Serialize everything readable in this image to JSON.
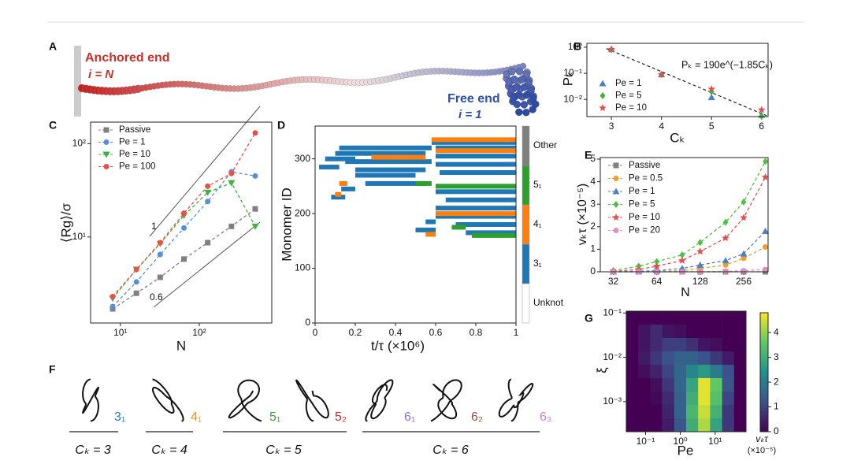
{
  "figure": {
    "panel_letters": [
      "A",
      "B",
      "C",
      "D",
      "E",
      "F",
      "G"
    ],
    "anchored_end": "Anchored end",
    "anchored_index": "i = N",
    "free_end": "Free end",
    "free_index": "i = 1",
    "knots": [
      {
        "label": "3₁",
        "color": "#2a7ab8"
      },
      {
        "label": "4₁",
        "color": "#e8962a"
      },
      {
        "label": "5₁",
        "color": "#3aa040"
      },
      {
        "label": "5₂",
        "color": "#c03030"
      },
      {
        "label": "6₁",
        "color": "#9070c0"
      },
      {
        "label": "6₂",
        "color": "#905040"
      },
      {
        "label": "6₃",
        "color": "#d080c0"
      }
    ],
    "groups": [
      "Cₖ = 3",
      "Cₖ = 4",
      "Cₖ = 5",
      "Cₖ = 6"
    ]
  },
  "chart_data": [
    {
      "type": "scatter",
      "xlabel": "Cₖ",
      "ylabel": "Pₖ",
      "annotation": "Pₖ = 190e^(−1.85Cₖ)",
      "fit": {
        "a": 190,
        "b": -1.85
      },
      "x": [
        3,
        4,
        5,
        6
      ],
      "xlim": [
        2.51,
        6.13
      ],
      "xticks": [
        3,
        4,
        5,
        6
      ],
      "yscale": "log",
      "ylim": [
        0.0022,
        1.41
      ],
      "yticks": [
        {
          "value": 0.01,
          "label": "10⁻²"
        },
        {
          "value": 0.1,
          "label": "10⁻¹"
        },
        {
          "value": 1,
          "label": "10⁰"
        }
      ],
      "legend": "lower left",
      "series": [
        {
          "name": "Pe = 1",
          "color": "#4a80c8",
          "marker": "triangle",
          "values": [
            0.85,
            0.09,
            0.012,
            0.0025
          ]
        },
        {
          "name": "Pe = 5",
          "color": "#40b040",
          "marker": "diamond",
          "values": [
            0.8,
            0.09,
            0.02,
            0.0023
          ]
        },
        {
          "name": "Pe = 10",
          "color": "#e05050",
          "marker": "star",
          "values": [
            0.82,
            0.09,
            0.025,
            0.004
          ]
        }
      ]
    },
    {
      "type": "line",
      "xlabel": "N",
      "ylabel": "⟨Rg⟩/σ",
      "annotations": [
        "1",
        "0.6"
      ],
      "x": [
        8,
        16,
        32,
        64,
        128,
        256,
        512
      ],
      "xscale": "log",
      "xlim": [
        4.2,
        830
      ],
      "xticks": [
        {
          "value": 10,
          "label": "10¹"
        },
        {
          "value": 100,
          "label": "10²"
        }
      ],
      "yscale": "log",
      "ylim": [
        1.2,
        170
      ],
      "yticks": [
        {
          "value": 10,
          "label": "10¹"
        },
        {
          "value": 100,
          "label": "10²"
        }
      ],
      "legend": "upper left",
      "series": [
        {
          "name": "Passive",
          "color": "#808080",
          "marker": "square",
          "values": [
            1.7,
            2.5,
            3.7,
            5.8,
            8.7,
            13,
            20
          ]
        },
        {
          "name": "Pe = 1",
          "color": "#5b8fd4",
          "marker": "circle",
          "values": [
            1.8,
            3.3,
            6.5,
            12.5,
            24,
            50,
            45
          ]
        },
        {
          "name": "Pe = 10",
          "color": "#3cb43c",
          "marker": "triangle-down",
          "values": [
            2.2,
            4.5,
            8.5,
            17,
            30,
            38,
            13
          ]
        },
        {
          "name": "Pe = 100",
          "color": "#e8504a",
          "marker": "circle",
          "values": [
            2.3,
            4.5,
            8.7,
            18,
            35,
            48,
            130
          ]
        }
      ]
    },
    {
      "type": "raster",
      "xlabel": "t/τ  (×10⁶)",
      "ylabel": "Monomer ID",
      "xlim": [
        0,
        1
      ],
      "xticks": [
        0,
        0.2,
        0.4,
        0.6,
        0.8,
        1
      ],
      "ylim": [
        0,
        360
      ],
      "yticks": [
        0,
        100,
        200,
        300
      ],
      "series": [
        {
          "name": "Unknot",
          "color": "#ffffff",
          "segments": []
        },
        {
          "name": "3₁",
          "color": "#1f77b4",
          "segments": [
            [
              0.02,
              0.12,
              285
            ],
            [
              0.05,
              0.2,
              300
            ],
            [
              0.1,
              0.55,
              310
            ],
            [
              0.12,
              0.58,
              320
            ],
            [
              0.15,
              0.58,
              295
            ],
            [
              0.2,
              0.55,
              280
            ],
            [
              0.2,
              0.5,
              270
            ],
            [
              0.25,
              0.55,
              255
            ],
            [
              0.58,
              1,
              330
            ],
            [
              0.6,
              1,
              320
            ],
            [
              0.6,
              1,
              305
            ],
            [
              0.6,
              1,
              290
            ],
            [
              0.62,
              1,
              275
            ],
            [
              0.6,
              1,
              240
            ],
            [
              0.65,
              1,
              225
            ],
            [
              0.6,
              1,
              210
            ],
            [
              0.6,
              1,
              195
            ],
            [
              0.08,
              0.15,
              230
            ],
            [
              0.13,
              0.2,
              245
            ],
            [
              0.55,
              0.6,
              185
            ],
            [
              0.5,
              0.6,
              170
            ],
            [
              0.7,
              1,
              180
            ],
            [
              0.75,
              1,
              165
            ]
          ]
        },
        {
          "name": "4₁",
          "color": "#ff7f0e",
          "segments": [
            [
              0.28,
              0.55,
              303
            ],
            [
              0.12,
              0.16,
              255
            ],
            [
              0.1,
              0.13,
              235
            ],
            [
              0.58,
              1,
              335
            ],
            [
              0.6,
              1,
              315
            ],
            [
              0.6,
              1,
              200
            ],
            [
              0.55,
              0.6,
              162
            ]
          ]
        },
        {
          "name": "5₁",
          "color": "#2ca02c",
          "segments": [
            [
              0.5,
              0.58,
              255
            ],
            [
              0.6,
              1,
              250
            ],
            [
              0.78,
              1,
              160
            ],
            [
              0.68,
              0.75,
              175
            ]
          ]
        },
        {
          "name": "Other",
          "color": "#7f7f7f",
          "segments": []
        }
      ]
    },
    {
      "type": "line",
      "xlabel": "N",
      "ylabel": "vₖτ (×10⁻⁵)",
      "x": [
        32,
        48,
        64,
        96,
        128,
        192,
        256,
        362
      ],
      "xscale": "log",
      "xlim": [
        26,
        378
      ],
      "xticks": [
        32,
        64,
        128,
        256
      ],
      "ylim": [
        0,
        5.07
      ],
      "yticks": [
        0,
        1,
        2,
        3,
        4,
        5
      ],
      "legend": "upper left",
      "series": [
        {
          "name": "Passive",
          "color": "#808080",
          "marker": "square",
          "values": [
            0,
            0,
            0,
            0,
            0,
            0,
            0,
            0
          ]
        },
        {
          "name": "Pe = 0.5",
          "color": "#f0a030",
          "marker": "circle",
          "values": [
            0,
            0,
            0.02,
            0.05,
            0.15,
            0.3,
            0.6,
            1.1
          ]
        },
        {
          "name": "Pe = 1",
          "color": "#5080c0",
          "marker": "triangle",
          "values": [
            0,
            0.02,
            0.05,
            0.15,
            0.3,
            0.5,
            0.8,
            1.8
          ]
        },
        {
          "name": "Pe = 5",
          "color": "#50c040",
          "marker": "diamond",
          "values": [
            0.05,
            0.25,
            0.45,
            0.75,
            1.3,
            2.2,
            3.1,
            4.9
          ]
        },
        {
          "name": "Pe = 10",
          "color": "#e05050",
          "marker": "star",
          "values": [
            0.02,
            0.1,
            0.25,
            0.5,
            0.9,
            1.5,
            2.4,
            4.2
          ]
        },
        {
          "name": "Pe = 20",
          "color": "#e090c0",
          "marker": "circle",
          "values": [
            0,
            0,
            0,
            0,
            0,
            0.02,
            0.05,
            0.1
          ]
        }
      ]
    },
    {
      "type": "heatmap",
      "xlabel": "Pe",
      "ylabel": "ξ",
      "colorbar_label": "vₖτ",
      "colorbar_unit": "(×10⁻⁵)",
      "xscale": "log",
      "xlim": [
        0.028,
        77
      ],
      "xticks": [
        {
          "value": 0.1,
          "label": "10⁻¹"
        },
        {
          "value": 1,
          "label": "10⁰"
        },
        {
          "value": 10,
          "label": "10¹"
        }
      ],
      "yscale": "log",
      "ylim": [
        0.00021,
        0.11
      ],
      "yticks": [
        {
          "value": 0.001,
          "label": "10⁻³"
        },
        {
          "value": 0.01,
          "label": "10⁻²"
        },
        {
          "value": 0.1,
          "label": "10⁻¹"
        }
      ],
      "zlim": [
        0,
        4.8
      ],
      "cticks": [
        0,
        1,
        2,
        3,
        4
      ],
      "values": [
        [
          0,
          0,
          0,
          0,
          0,
          0,
          0,
          0,
          0,
          0
        ],
        [
          0,
          0.3,
          0.6,
          0.3,
          0.2,
          0,
          0,
          0,
          0,
          0
        ],
        [
          0,
          0.3,
          0.6,
          0.9,
          0.9,
          0.7,
          0.3,
          0.2,
          0,
          0
        ],
        [
          0,
          0.4,
          0.8,
          1.2,
          1.5,
          1.5,
          1.2,
          0.8,
          0.4,
          0
        ],
        [
          0,
          0.2,
          0.5,
          1,
          1.6,
          2.2,
          2.6,
          2,
          1.2,
          0
        ],
        [
          0,
          0,
          0.2,
          0.8,
          1.6,
          2.8,
          4.6,
          3.6,
          1.3,
          0
        ],
        [
          0,
          0,
          0.1,
          0.6,
          1.5,
          3,
          4.6,
          3.4,
          1,
          0
        ],
        [
          0,
          0,
          0,
          0.5,
          1.5,
          3.2,
          4.4,
          3.1,
          0.8,
          0
        ],
        [
          0,
          0,
          0,
          0.4,
          1.3,
          3,
          4.2,
          2.8,
          0.8,
          0
        ]
      ]
    }
  ]
}
